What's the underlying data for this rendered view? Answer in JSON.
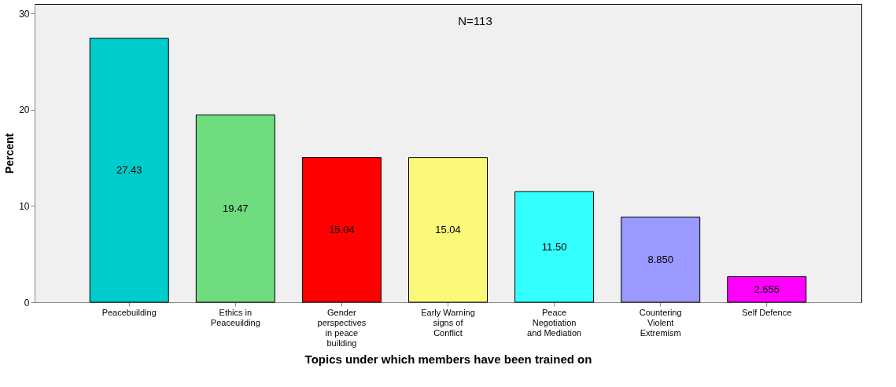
{
  "chart_data": {
    "type": "bar",
    "xlabel": "Topics under which members have been trained on",
    "ylabel": "Percent",
    "categories": [
      "Peacebuilding",
      "Ethics in Peaceuilding",
      "Gender perspectives in peace building",
      "Early Warning signs of Conflict",
      "Peace Negotiation and Mediation",
      "Countering Violent Extremism",
      "Self Defence"
    ],
    "values": [
      27.43,
      19.47,
      15.04,
      15.04,
      11.5,
      8.85,
      2.655
    ],
    "value_labels": [
      "27.43",
      "19.47",
      "15.04",
      "15.04",
      "11.50",
      "8.850",
      "2.655"
    ],
    "colors": [
      "#00cccc",
      "#70dc80",
      "#ff0000",
      "#fbf87a",
      "#33ffff",
      "#9999ff",
      "#ff00ff"
    ],
    "ylim": [
      0,
      31
    ],
    "yticks": [
      0,
      10,
      20,
      30
    ],
    "grid": false,
    "annotations": [
      "N=113"
    ]
  }
}
